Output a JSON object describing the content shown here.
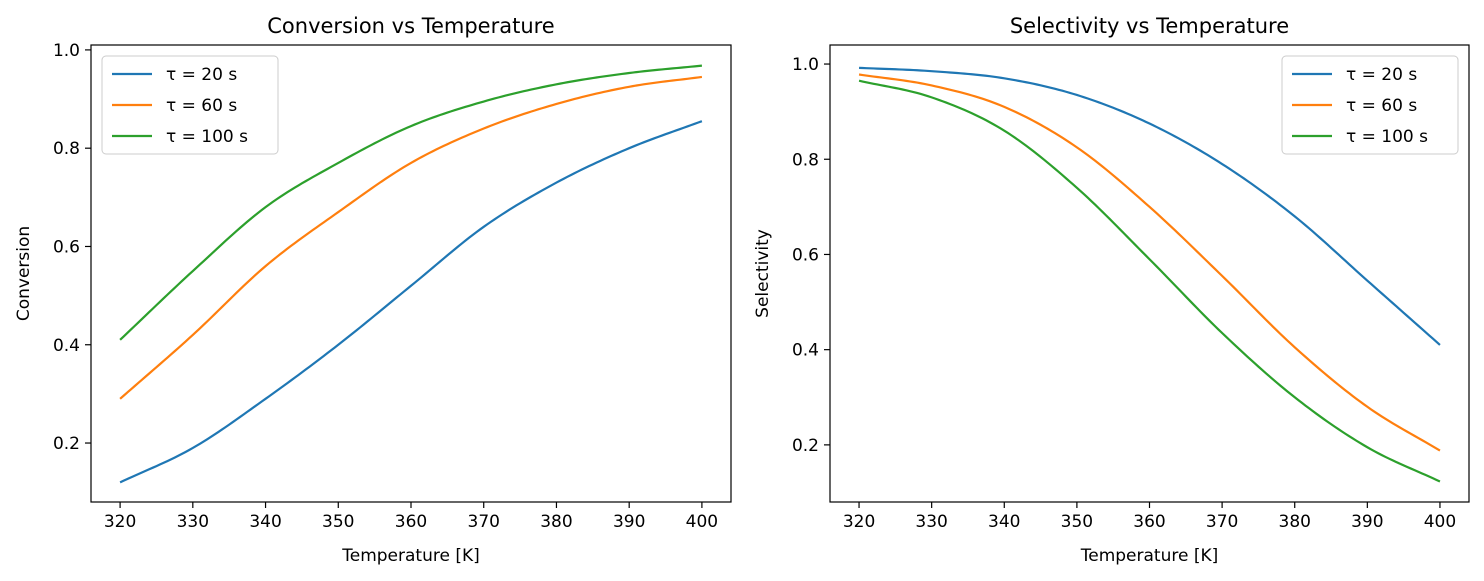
{
  "chart_data": [
    {
      "type": "line",
      "title": "Conversion vs Temperature",
      "xlabel": "Temperature [K]",
      "ylabel": "Conversion",
      "xlim": [
        316,
        404
      ],
      "ylim": [
        0.08,
        1.01
      ],
      "xticks": [
        320,
        330,
        340,
        350,
        360,
        370,
        380,
        390,
        400
      ],
      "yticks": [
        0.2,
        0.4,
        0.6,
        0.8,
        1.0
      ],
      "legend_position": "upper-left",
      "grid": false,
      "x": [
        320,
        330,
        340,
        350,
        360,
        370,
        380,
        390,
        400
      ],
      "series": [
        {
          "name": "τ = 20 s",
          "color": "#1f77b4",
          "values": [
            0.12,
            0.19,
            0.29,
            0.4,
            0.52,
            0.64,
            0.73,
            0.8,
            0.855
          ]
        },
        {
          "name": "τ = 60 s",
          "color": "#ff7f0e",
          "values": [
            0.29,
            0.42,
            0.56,
            0.67,
            0.77,
            0.84,
            0.89,
            0.925,
            0.945
          ]
        },
        {
          "name": "τ = 100 s",
          "color": "#2ca02c",
          "values": [
            0.41,
            0.55,
            0.68,
            0.77,
            0.845,
            0.895,
            0.93,
            0.953,
            0.968
          ]
        }
      ]
    },
    {
      "type": "line",
      "title": "Selectivity vs Temperature",
      "xlabel": "Temperature [K]",
      "ylabel": "Selectivity",
      "xlim": [
        316,
        404
      ],
      "ylim": [
        0.08,
        1.04
      ],
      "xticks": [
        320,
        330,
        340,
        350,
        360,
        370,
        380,
        390,
        400
      ],
      "yticks": [
        0.2,
        0.4,
        0.6,
        0.8,
        1.0
      ],
      "legend_position": "upper-right",
      "grid": false,
      "x": [
        320,
        330,
        340,
        350,
        360,
        370,
        380,
        390,
        400
      ],
      "series": [
        {
          "name": "τ = 20 s",
          "color": "#1f77b4",
          "values": [
            0.992,
            0.985,
            0.97,
            0.935,
            0.875,
            0.79,
            0.68,
            0.545,
            0.41
          ]
        },
        {
          "name": "τ = 60 s",
          "color": "#ff7f0e",
          "values": [
            0.978,
            0.955,
            0.91,
            0.825,
            0.7,
            0.555,
            0.405,
            0.28,
            0.188
          ]
        },
        {
          "name": "τ = 100 s",
          "color": "#2ca02c",
          "values": [
            0.965,
            0.93,
            0.86,
            0.74,
            0.59,
            0.435,
            0.3,
            0.195,
            0.123
          ]
        }
      ]
    }
  ]
}
